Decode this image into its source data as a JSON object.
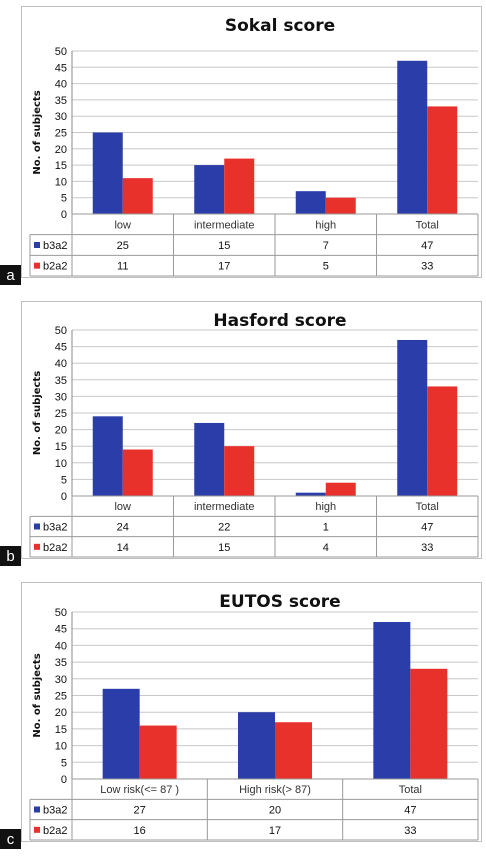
{
  "chart_data": [
    {
      "type": "bar",
      "panel": "a",
      "title": "Sokal score",
      "ylabel": "No. of subjects",
      "ylim": [
        0,
        50
      ],
      "yticks": [
        "0",
        "5",
        "10",
        "15",
        "20",
        "25",
        "30",
        "35",
        "40",
        "45",
        "50"
      ],
      "categories": [
        "low",
        "intermediate",
        "high",
        "Total"
      ],
      "series": [
        {
          "name": "b3a2",
          "color": "#2b3da8",
          "values": [
            25,
            15,
            7,
            47
          ]
        },
        {
          "name": "b2a2",
          "color": "#e8312a",
          "values": [
            11,
            17,
            5,
            33
          ]
        }
      ],
      "grid": true
    },
    {
      "type": "bar",
      "panel": "b",
      "title": "Hasford score",
      "ylabel": "No. of subjects",
      "ylim": [
        0,
        50
      ],
      "yticks": [
        "0",
        "5",
        "10",
        "15",
        "20",
        "25",
        "30",
        "35",
        "40",
        "45",
        "50"
      ],
      "categories": [
        "low",
        "intermediate",
        "high",
        "Total"
      ],
      "series": [
        {
          "name": "b3a2",
          "color": "#2b3da8",
          "values": [
            24,
            22,
            1,
            47
          ]
        },
        {
          "name": "b2a2",
          "color": "#e8312a",
          "values": [
            14,
            15,
            4,
            33
          ]
        }
      ],
      "grid": true
    },
    {
      "type": "bar",
      "panel": "c",
      "title": "EUTOS score",
      "ylabel": "No. of subjects",
      "ylim": [
        0,
        50
      ],
      "yticks": [
        "0",
        "5",
        "10",
        "15",
        "20",
        "25",
        "30",
        "35",
        "40",
        "45",
        "50"
      ],
      "categories": [
        "Low risk(<= 87 )",
        "High risk(> 87)",
        "Total"
      ],
      "series": [
        {
          "name": "b3a2",
          "color": "#2b3da8",
          "values": [
            27,
            20,
            47
          ]
        },
        {
          "name": "b2a2",
          "color": "#e8312a",
          "values": [
            16,
            17,
            33
          ]
        }
      ],
      "grid": true
    }
  ]
}
